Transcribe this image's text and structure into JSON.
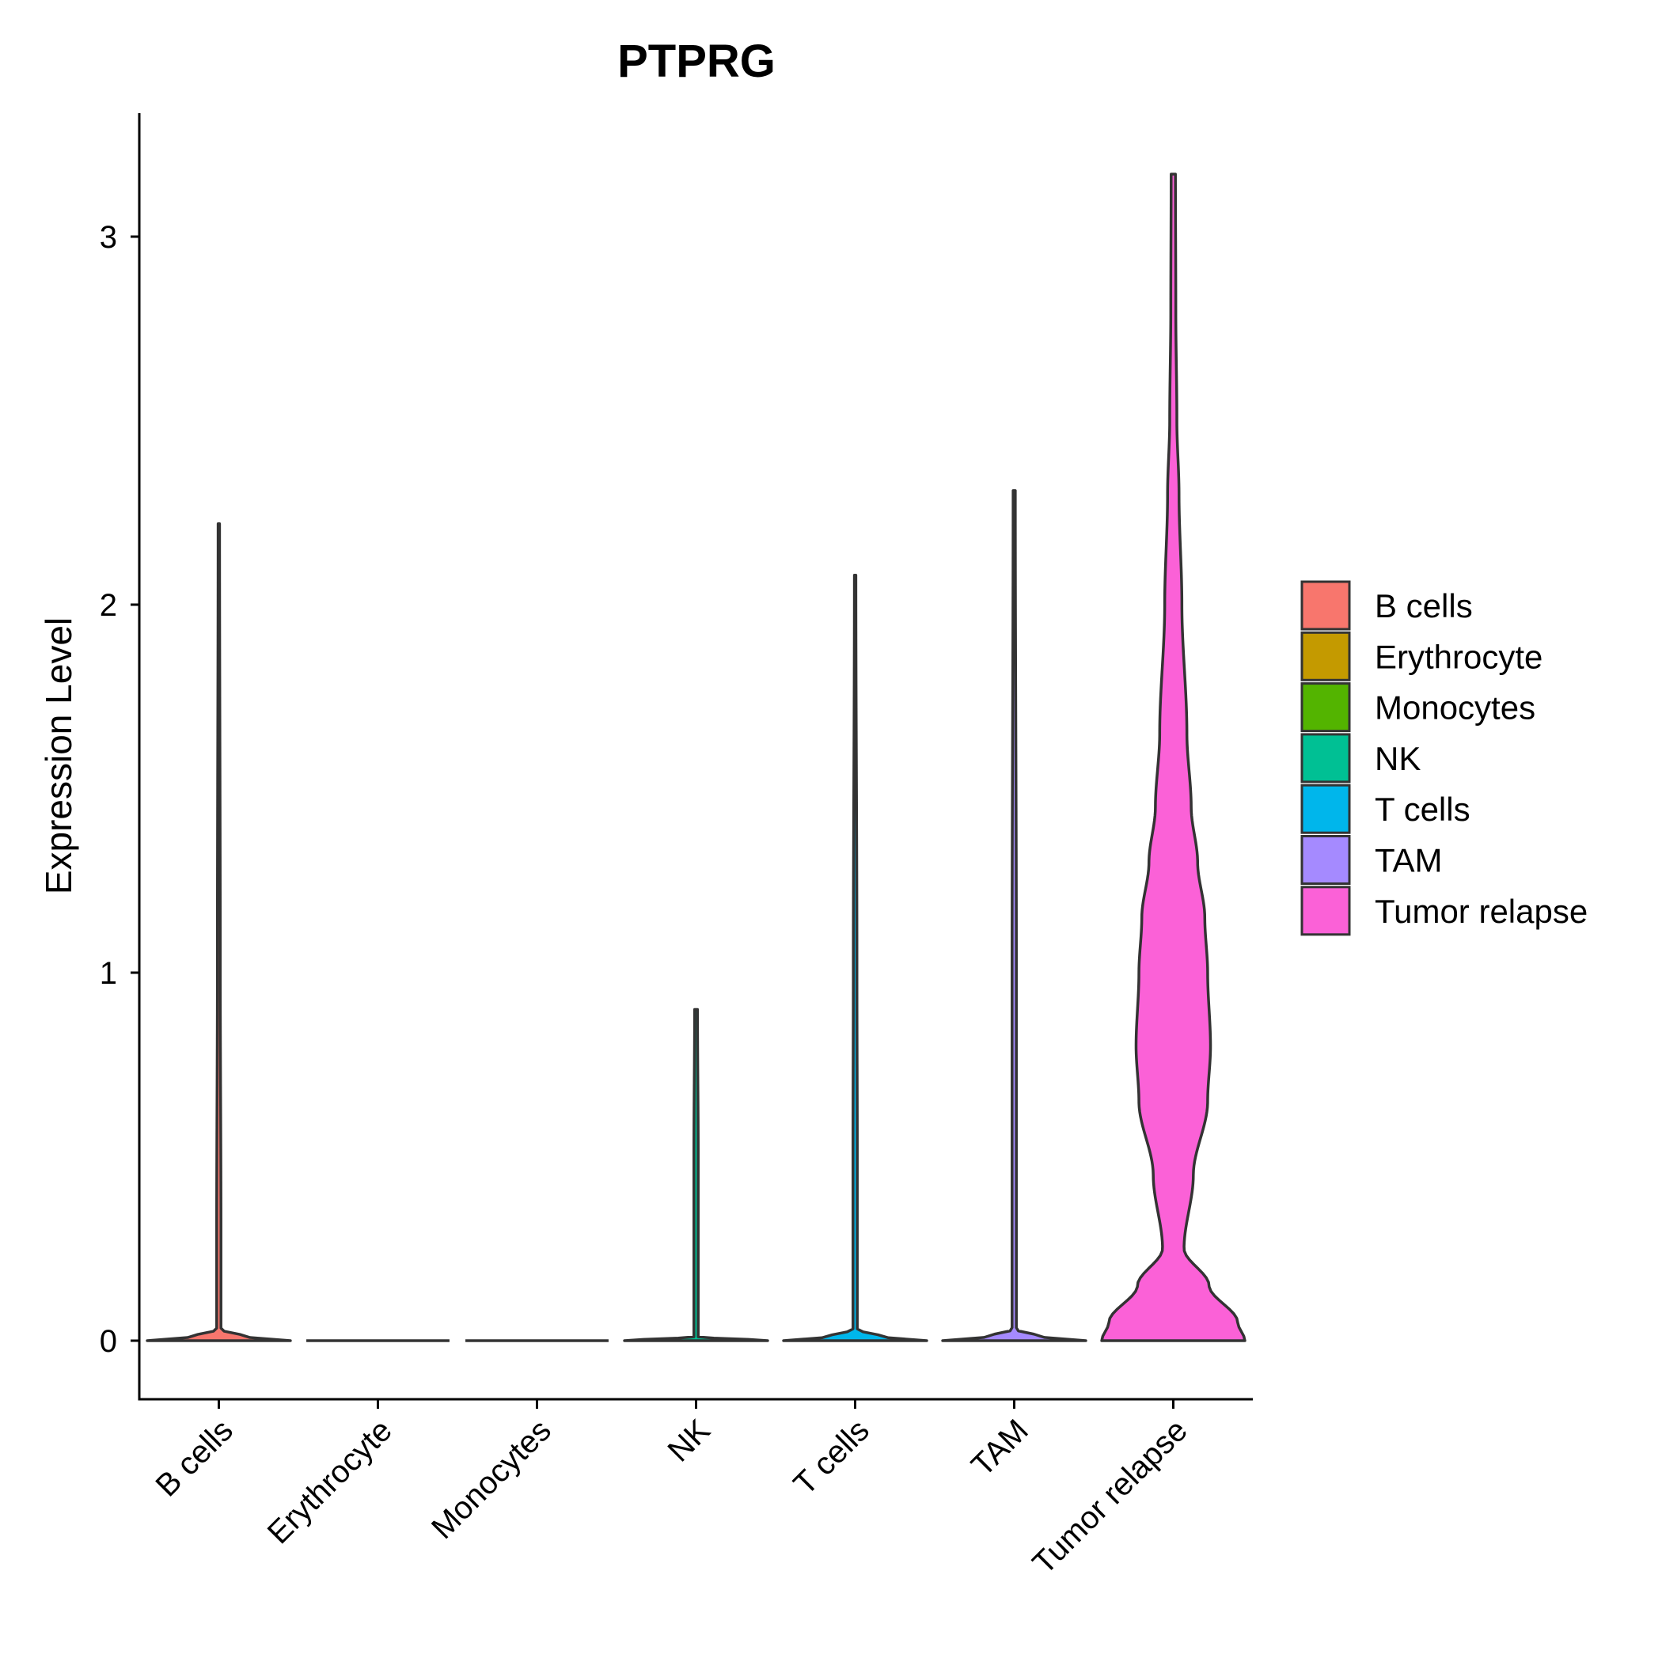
{
  "chart_data": {
    "type": "violin",
    "title": "PTPRG",
    "xlabel": "",
    "ylabel": "Expression Level",
    "ylim": [
      -0.15,
      3.3
    ],
    "yticks": [
      0,
      1,
      2,
      3
    ],
    "ytick_labels": [
      "0",
      "1",
      "2",
      "3"
    ],
    "categories": [
      "B cells",
      "Erythrocyte",
      "Monocytes",
      "NK",
      "T cells",
      "TAM",
      "Tumor relapse"
    ],
    "colors": [
      "#F8766D",
      "#C49A00",
      "#53B400",
      "#00C094",
      "#00B6EB",
      "#A58AFF",
      "#FB61D7"
    ],
    "max_values": [
      2.22,
      0.0,
      0.0,
      0.9,
      2.08,
      2.31,
      3.17
    ],
    "density_profiles": [
      {
        "name": "B cells",
        "points": [
          [
            0,
            1.0
          ],
          [
            0.01,
            0.4
          ],
          [
            0.03,
            0.03
          ],
          [
            0.3,
            0.03
          ],
          [
            1.0,
            0.02
          ],
          [
            2.22,
            0.01
          ]
        ]
      },
      {
        "name": "Erythrocyte",
        "points": [
          [
            0,
            1.0
          ]
        ]
      },
      {
        "name": "Monocytes",
        "points": [
          [
            0,
            1.0
          ]
        ]
      },
      {
        "name": "NK",
        "points": [
          [
            0,
            1.0
          ],
          [
            0.01,
            0.03
          ],
          [
            0.5,
            0.03
          ],
          [
            0.9,
            0.02
          ]
        ]
      },
      {
        "name": "T cells",
        "points": [
          [
            0,
            1.0
          ],
          [
            0.01,
            0.4
          ],
          [
            0.03,
            0.03
          ],
          [
            0.5,
            0.03
          ],
          [
            1.0,
            0.025
          ],
          [
            2.08,
            0.01
          ]
        ]
      },
      {
        "name": "TAM",
        "points": [
          [
            0,
            1.0
          ],
          [
            0.01,
            0.4
          ],
          [
            0.03,
            0.03
          ],
          [
            1.0,
            0.03
          ],
          [
            2.31,
            0.015
          ]
        ]
      },
      {
        "name": "Tumor relapse",
        "points": [
          [
            0,
            1.0
          ],
          [
            0.05,
            0.9
          ],
          [
            0.15,
            0.5
          ],
          [
            0.25,
            0.15
          ],
          [
            0.45,
            0.28
          ],
          [
            0.65,
            0.48
          ],
          [
            0.8,
            0.52
          ],
          [
            1.0,
            0.48
          ],
          [
            1.15,
            0.44
          ],
          [
            1.3,
            0.34
          ],
          [
            1.45,
            0.25
          ],
          [
            1.65,
            0.19
          ],
          [
            2.0,
            0.12
          ],
          [
            2.3,
            0.08
          ],
          [
            2.5,
            0.05
          ],
          [
            2.8,
            0.035
          ],
          [
            3.17,
            0.03
          ]
        ]
      }
    ],
    "legend": {
      "position": "right",
      "entries": [
        "B cells",
        "Erythrocyte",
        "Monocytes",
        "NK",
        "T cells",
        "TAM",
        "Tumor relapse"
      ]
    }
  }
}
